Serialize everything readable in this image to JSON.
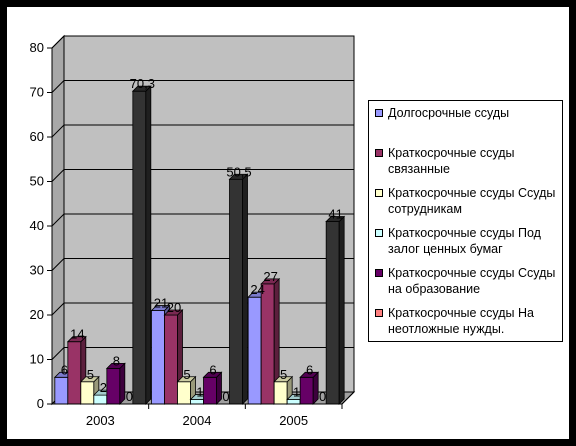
{
  "chart_data": {
    "type": "bar",
    "categories": [
      "2003",
      "2004",
      "2005"
    ],
    "ylim": [
      0,
      80
    ],
    "yticks": [
      0,
      10,
      20,
      30,
      40,
      50,
      60,
      70,
      80
    ],
    "grid": true,
    "legend_position": "right",
    "series": [
      {
        "name": "Долгосрочные  ссуды",
        "color": "#9999ff",
        "values": [
          6,
          21,
          24
        ],
        "labels": [
          "6",
          "21",
          "24"
        ]
      },
      {
        "name": "Краткосрочные ссуды связанные",
        "color": "#993366",
        "values": [
          14,
          20,
          27
        ],
        "labels": [
          "14",
          "20",
          "27"
        ]
      },
      {
        "name": "Краткосрочные ссуды Ссуды сотрудникам",
        "color": "#ffffcc",
        "values": [
          5,
          5,
          5
        ],
        "labels": [
          "5",
          "5",
          "5"
        ]
      },
      {
        "name": "Краткосрочные ссуды Под залог ценных бумаг",
        "color": "#ccffff",
        "values": [
          2,
          1,
          1
        ],
        "labels": [
          "2",
          "1",
          "1"
        ]
      },
      {
        "name": "Краткосрочные ссуды Ссуды на образование",
        "color": "#660066",
        "values": [
          8,
          6,
          6
        ],
        "labels": [
          "8",
          "6",
          "6"
        ]
      },
      {
        "name": "Краткосрочные ссуды На неотложные нужды.",
        "color": "#ff8080",
        "values": [
          0,
          0,
          0
        ],
        "labels": [
          "0",
          "0",
          "0"
        ]
      },
      {
        "name": "",
        "color": "#333333",
        "values": [
          70.3,
          50.5,
          41
        ],
        "labels": [
          "70,3",
          "50,5",
          "41"
        ]
      }
    ]
  }
}
